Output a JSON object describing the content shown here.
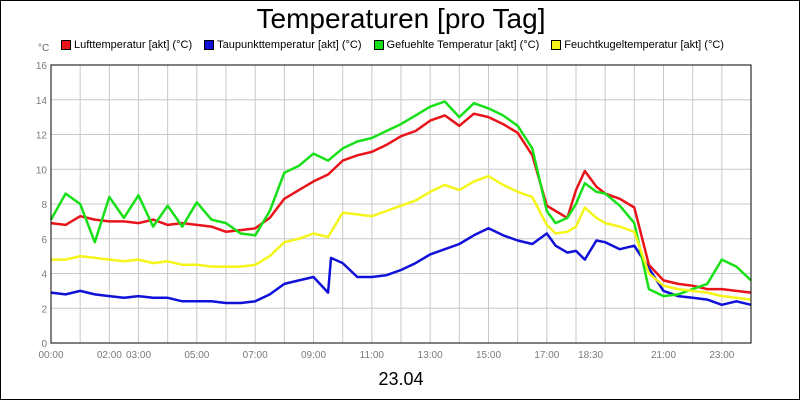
{
  "chart_data": {
    "type": "line",
    "title": "Temperaturen [pro Tag]",
    "ylabel": "°C",
    "xlabel": "23.04",
    "ylim": [
      0,
      16
    ],
    "yticks": [
      0,
      2,
      4,
      6,
      8,
      10,
      12,
      14,
      16
    ],
    "xlim": [
      0,
      24
    ],
    "xticks": [
      {
        "hour": 0,
        "label": "00:00"
      },
      {
        "hour": 2,
        "label": "02:00"
      },
      {
        "hour": 3,
        "label": "03:00"
      },
      {
        "hour": 5,
        "label": "05:00"
      },
      {
        "hour": 7,
        "label": "07:00"
      },
      {
        "hour": 9,
        "label": "09:00"
      },
      {
        "hour": 11,
        "label": "11:00"
      },
      {
        "hour": 13,
        "label": "13:00"
      },
      {
        "hour": 15,
        "label": "15:00"
      },
      {
        "hour": 17,
        "label": "17:00"
      },
      {
        "hour": 18.5,
        "label": "18:30"
      },
      {
        "hour": 21,
        "label": "21:00"
      },
      {
        "hour": 23,
        "label": "23:00"
      }
    ],
    "grid": true,
    "legend_position": "top",
    "series": [
      {
        "name": "Lufttemperatur [akt] (°C)",
        "color": "#e8141a",
        "x": [
          0,
          0.5,
          1,
          1.5,
          2,
          2.5,
          3,
          3.5,
          4,
          4.5,
          5,
          5.5,
          6,
          6.5,
          7,
          7.5,
          8,
          8.5,
          9,
          9.5,
          10,
          10.5,
          11,
          11.5,
          12,
          12.5,
          13,
          13.5,
          14,
          14.5,
          15,
          15.5,
          16,
          16.5,
          17,
          17.3,
          17.7,
          18,
          18.3,
          18.7,
          19,
          19.5,
          20,
          20.5,
          21,
          21.5,
          22,
          22.5,
          23,
          23.5,
          24
        ],
        "y": [
          6.9,
          6.8,
          7.3,
          7.1,
          7.0,
          7.0,
          6.9,
          7.1,
          6.8,
          6.9,
          6.8,
          6.7,
          6.4,
          6.5,
          6.6,
          7.2,
          8.3,
          8.8,
          9.3,
          9.7,
          10.5,
          10.8,
          11.0,
          11.4,
          11.9,
          12.2,
          12.8,
          13.1,
          12.5,
          13.2,
          13.0,
          12.6,
          12.1,
          10.8,
          7.9,
          7.6,
          7.2,
          8.8,
          9.9,
          9.0,
          8.6,
          8.3,
          7.8,
          4.5,
          3.6,
          3.4,
          3.3,
          3.1,
          3.1,
          3.0,
          2.9
        ]
      },
      {
        "name": "Taupunkttemperatur [akt] (°C)",
        "color": "#1010d8",
        "x": [
          0,
          0.5,
          1,
          1.5,
          2,
          2.5,
          3,
          3.5,
          4,
          4.5,
          5,
          5.5,
          6,
          6.5,
          7,
          7.5,
          8,
          8.5,
          9,
          9.5,
          9.6,
          10,
          10.5,
          11,
          11.5,
          12,
          12.5,
          13,
          13.5,
          14,
          14.5,
          15,
          15.5,
          16,
          16.5,
          17,
          17.3,
          17.7,
          18,
          18.3,
          18.7,
          19,
          19.5,
          20,
          20.5,
          21,
          21.5,
          22,
          22.5,
          23,
          23.5,
          24
        ],
        "y": [
          2.9,
          2.8,
          3.0,
          2.8,
          2.7,
          2.6,
          2.7,
          2.6,
          2.6,
          2.4,
          2.4,
          2.4,
          2.3,
          2.3,
          2.4,
          2.8,
          3.4,
          3.6,
          3.8,
          2.9,
          4.9,
          4.6,
          3.8,
          3.8,
          3.9,
          4.2,
          4.6,
          5.1,
          5.4,
          5.7,
          6.2,
          6.6,
          6.2,
          5.9,
          5.7,
          6.3,
          5.6,
          5.2,
          5.3,
          4.8,
          5.9,
          5.8,
          5.4,
          5.6,
          4.3,
          3.0,
          2.7,
          2.6,
          2.5,
          2.2,
          2.4,
          2.2
        ]
      },
      {
        "name": "Gefuehlte Temperatur [akt] (°C)",
        "color": "#18e018",
        "x": [
          0,
          0.5,
          1,
          1.5,
          2,
          2.5,
          3,
          3.5,
          4,
          4.5,
          5,
          5.5,
          6,
          6.5,
          7,
          7.5,
          8,
          8.5,
          9,
          9.5,
          10,
          10.5,
          11,
          11.5,
          12,
          12.5,
          13,
          13.5,
          14,
          14.5,
          15,
          15.5,
          16,
          16.5,
          17,
          17.3,
          17.7,
          18,
          18.3,
          18.7,
          19,
          19.5,
          20,
          20.5,
          21,
          21.5,
          22,
          22.5,
          23,
          23.5,
          24
        ],
        "y": [
          7.1,
          8.6,
          8.0,
          5.8,
          8.4,
          7.2,
          8.5,
          6.7,
          7.9,
          6.7,
          8.1,
          7.1,
          6.9,
          6.3,
          6.2,
          7.6,
          9.8,
          10.2,
          10.9,
          10.5,
          11.2,
          11.6,
          11.8,
          12.2,
          12.6,
          13.1,
          13.6,
          13.9,
          13.0,
          13.8,
          13.5,
          13.1,
          12.5,
          11.2,
          7.6,
          6.9,
          7.2,
          8.0,
          9.2,
          8.7,
          8.6,
          7.9,
          6.9,
          3.1,
          2.7,
          2.8,
          3.1,
          3.4,
          4.8,
          4.4,
          3.6
        ]
      },
      {
        "name": "Feuchtkugeltemperatur [akt] (°C)",
        "color": "#f5f51a",
        "x": [
          0,
          0.5,
          1,
          1.5,
          2,
          2.5,
          3,
          3.5,
          4,
          4.5,
          5,
          5.5,
          6,
          6.5,
          7,
          7.5,
          8,
          8.5,
          9,
          9.5,
          10,
          10.5,
          11,
          11.5,
          12,
          12.5,
          13,
          13.5,
          14,
          14.5,
          15,
          15.5,
          16,
          16.5,
          17,
          17.3,
          17.7,
          18,
          18.3,
          18.7,
          19,
          19.5,
          20,
          20.5,
          21,
          21.5,
          22,
          22.5,
          23,
          23.5,
          24
        ],
        "y": [
          4.8,
          4.8,
          5.0,
          4.9,
          4.8,
          4.7,
          4.8,
          4.6,
          4.7,
          4.5,
          4.5,
          4.4,
          4.4,
          4.4,
          4.5,
          5.0,
          5.8,
          6.0,
          6.3,
          6.1,
          7.5,
          7.4,
          7.3,
          7.6,
          7.9,
          8.2,
          8.7,
          9.1,
          8.8,
          9.3,
          9.6,
          9.1,
          8.7,
          8.4,
          6.8,
          6.3,
          6.4,
          6.7,
          7.8,
          7.2,
          6.9,
          6.7,
          6.4,
          4.0,
          3.3,
          3.1,
          3.0,
          2.9,
          2.7,
          2.6,
          2.5
        ]
      }
    ],
    "grid_color": "#c8c8c8"
  }
}
